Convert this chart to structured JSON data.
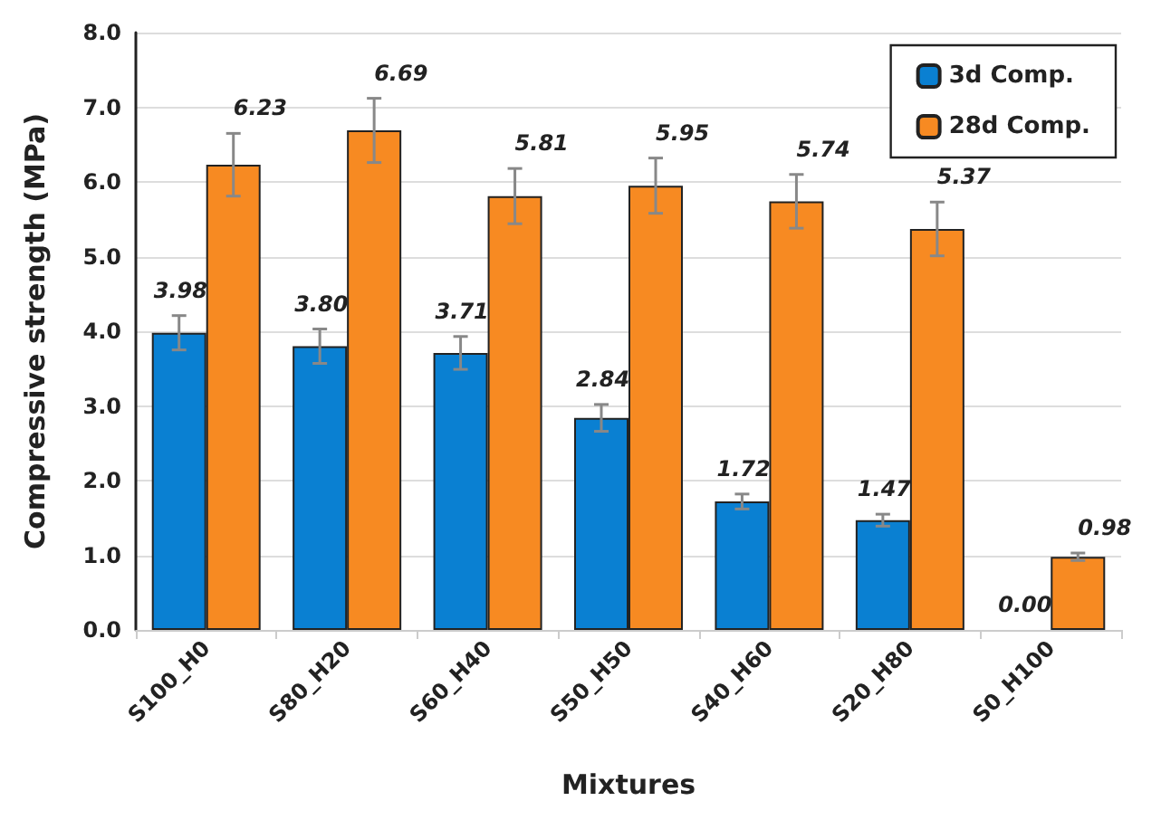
{
  "chart_data": {
    "type": "bar",
    "xlabel": "Mixtures",
    "ylabel": "Compressive strength (MPa)",
    "categories": [
      "S100_H0",
      "S80_H20",
      "S60_H40",
      "S50_H50",
      "S40_H60",
      "S20_H80",
      "S0_H100"
    ],
    "series": [
      {
        "name": "3d Comp.",
        "color": "#0a80d2",
        "values": [
          3.98,
          3.8,
          3.71,
          2.84,
          1.72,
          1.47,
          0.0
        ],
        "value_labels": [
          "3.98",
          "3.80",
          "3.71",
          "2.84",
          "1.72",
          "1.47",
          "0.00"
        ],
        "errors": [
          0.23,
          0.23,
          0.22,
          0.18,
          0.1,
          0.08,
          null
        ]
      },
      {
        "name": "28d Comp.",
        "color": "#f78a22",
        "values": [
          6.23,
          6.69,
          5.81,
          5.95,
          5.74,
          5.37,
          0.98
        ],
        "value_labels": [
          "6.23",
          "6.69",
          "5.81",
          "5.95",
          "5.74",
          "5.37",
          "0.98"
        ],
        "errors": [
          0.42,
          0.43,
          0.37,
          0.37,
          0.36,
          0.36,
          0.05
        ]
      }
    ],
    "ylim": [
      0,
      8
    ],
    "yticks": [
      {
        "value": 0,
        "label": "0.0"
      },
      {
        "value": 1,
        "label": "1.0"
      },
      {
        "value": 2,
        "label": "2.0"
      },
      {
        "value": 3,
        "label": "3.0"
      },
      {
        "value": 4,
        "label": "4.0"
      },
      {
        "value": 5,
        "label": "5.0"
      },
      {
        "value": 6,
        "label": "6.0"
      },
      {
        "value": 7,
        "label": "7.0"
      },
      {
        "value": 8,
        "label": "8.0"
      }
    ],
    "grid": "y",
    "legend": "top right"
  }
}
